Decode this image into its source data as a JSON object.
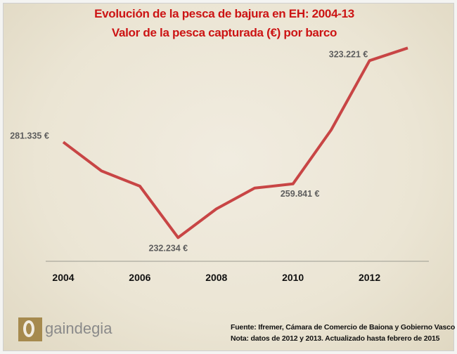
{
  "title_line1": "Evolución de la pesca de bajura en EH: 2004-13",
  "title_line2": "Valor de la pesca capturada (€) por barco",
  "source": "Fuente: Ifremer, Cámara de Comercio de Baiona y Gobierno Vasco",
  "note": "Nota: datos de 2012 y 2013. Actualizado hasta febrero de 2015",
  "logo_text": "gaindegia",
  "colors": {
    "line": "#c84545",
    "title": "#cc1414",
    "background": "#ebe5d4"
  },
  "chart_data": {
    "type": "line",
    "title": "Evolución de la pesca de bajura en EH: 2004-13",
    "subtitle": "Valor de la pesca capturada (€) por barco",
    "x": [
      2004,
      2005,
      2006,
      2007,
      2008,
      2009,
      2010,
      2011,
      2012,
      2013
    ],
    "values": [
      281335,
      266500,
      258700,
      232234,
      247000,
      257700,
      259841,
      287600,
      323221,
      329700
    ],
    "xticks": [
      "2004",
      "2006",
      "2008",
      "2010",
      "2012"
    ],
    "data_labels": [
      {
        "year": 2004,
        "text": "281.335 €"
      },
      {
        "year": 2007,
        "text": "232.234 €"
      },
      {
        "year": 2010,
        "text": "259.841 €"
      },
      {
        "year": 2012,
        "text": "323.221 €"
      }
    ],
    "xlim": [
      2004,
      2013
    ],
    "ylim": [
      200000,
      340000
    ],
    "grid": false,
    "y_axis_visible": false
  }
}
